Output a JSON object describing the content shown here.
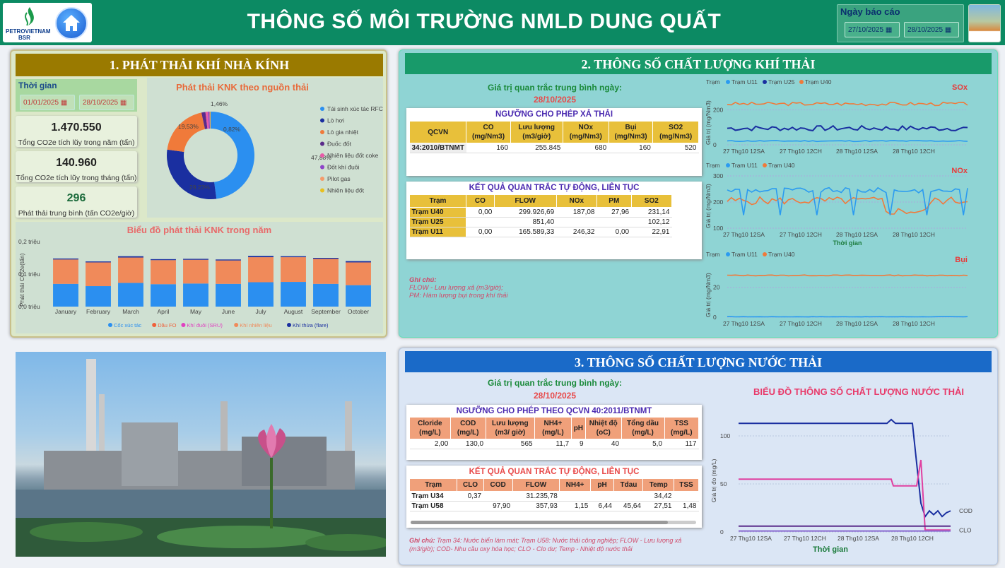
{
  "header": {
    "brand_line1": "PETROVIETNAM",
    "brand_line2": "BSR",
    "title": "THÔNG SỐ MÔI TRƯỜNG NMLD DUNG QUẤT",
    "report_date_label": "Ngày báo cáo",
    "date_from": "27/10/2025",
    "date_to": "28/10/2025"
  },
  "ghg": {
    "title": "1. PHÁT THẢI KHÍ NHÀ KÍNH",
    "time_label": "Thời gian",
    "date_from": "01/01/2025",
    "date_to": "28/10/2025",
    "kpi": [
      {
        "value": "1.470.550",
        "label": "Tổng CO2e tích lũy trong năm (tấn)"
      },
      {
        "value": "140.960",
        "label": "Tổng CO2e tích lũy trong tháng (tấn)"
      },
      {
        "value": "296",
        "label": "Phát thải trung bình (tấn CO2e/giờ)"
      }
    ],
    "donut": {
      "title": "Phát thải KNK theo nguồn thải",
      "slices": [
        {
          "name": "Tái sinh xúc tác RFCC",
          "value": 47.88,
          "label": "47,88%",
          "color": "#2b8ff0"
        },
        {
          "name": "Lò hơi",
          "value": 29.23,
          "label": "29,23%",
          "color": "#1a2fa0"
        },
        {
          "name": "Lò gia nhiệt",
          "value": 19.53,
          "label": "19,53%",
          "color": "#f07a3a"
        },
        {
          "name": "Đuốc đốt",
          "value": 1.46,
          "label": "1,46%",
          "color": "#5a2a8a"
        },
        {
          "name": "Nhiên liệu đốt coke",
          "value": 0.95,
          "label": "",
          "color": "#e85aa8"
        },
        {
          "name": "Đốt khí đuôi",
          "value": 0.55,
          "label": "",
          "color": "#8e44c8"
        },
        {
          "name": "Pilot gas",
          "value": 0.25,
          "label": "",
          "color": "#f59a6a"
        },
        {
          "name": "Nhiên liệu đốt",
          "value": 0.15,
          "label": "",
          "color": "#e8c020"
        }
      ],
      "center_label": "0,82%"
    },
    "bar": {
      "title": "Biểu đồ phát thải KNK trong năm",
      "ylabel": "Phát thải CO2e(tấn)",
      "yticks": [
        "0,0 triệu",
        "0,1 triệu",
        "0,2 triệu"
      ],
      "categories": [
        "January",
        "February",
        "March",
        "April",
        "May",
        "June",
        "July",
        "August",
        "September",
        "October"
      ],
      "series": [
        {
          "name": "Cốc xúc tác",
          "color": "#2b8ff0",
          "values": [
            0.07,
            0.063,
            0.073,
            0.069,
            0.071,
            0.07,
            0.075,
            0.076,
            0.07,
            0.066
          ]
        },
        {
          "name": "Dầu FO",
          "color": "#f0603a",
          "values": [
            0,
            0,
            0,
            0,
            0,
            0,
            0,
            0,
            0,
            0
          ]
        },
        {
          "name": "Khí đuôi (SRU)",
          "color": "#e040c0",
          "values": [
            0,
            0,
            0,
            0,
            0,
            0,
            0,
            0,
            0,
            0
          ]
        },
        {
          "name": "Khí nhiên liệu",
          "color": "#f08a5a",
          "values": [
            0.075,
            0.073,
            0.078,
            0.074,
            0.073,
            0.072,
            0.077,
            0.076,
            0.077,
            0.07
          ]
        },
        {
          "name": "Khí thừa (flare)",
          "color": "#1a2fa0",
          "values": [
            0.003,
            0.003,
            0.004,
            0.003,
            0.003,
            0.003,
            0.004,
            0.003,
            0.003,
            0.004
          ]
        }
      ],
      "ymax": 0.2
    }
  },
  "gas": {
    "title": "2. THÔNG SỐ CHẤT LƯỢNG KHÍ THẢI",
    "avg_label": "Giá trị quan trắc trung bình ngày:",
    "avg_date": "28/10/2025",
    "limit_title": "NGƯỠNG CHO PHÉP XẢ THẢI",
    "limit_headers": [
      "QCVN",
      "CO (mg/Nm3)",
      "Lưu lượng (m3/giờ)",
      "NOx (mg/Nm3)",
      "Bụi (mg/Nm3)",
      "SO2 (mg/Nm3)"
    ],
    "limit_row": [
      "34:2010/BTNMT",
      "160",
      "255.845",
      "680",
      "160",
      "520"
    ],
    "auto_title": "KẾT QUẢ QUAN TRẮC TỰ ĐỘNG, LIÊN TỤC",
    "auto_headers": [
      "Trạm",
      "CO",
      "FLOW",
      "NOx",
      "PM",
      "SO2"
    ],
    "auto_rows": [
      [
        "Trạm U40",
        "0,00",
        "299.926,69",
        "187,08",
        "27,96",
        "231,14"
      ],
      [
        "Trạm U25",
        "",
        "851,40",
        "",
        "",
        "102,12"
      ],
      [
        "Trạm U11",
        "0,00",
        "165.589,33",
        "246,32",
        "0,00",
        "22,91"
      ]
    ],
    "note_title": "Ghi chú:",
    "note_lines": [
      "FLOW - Lưu lượng xả (m3/giờ);",
      "PM: Hàm lượng bụi trong khí thải"
    ],
    "charts_legend_title": "Trạm",
    "x_ticks": [
      "27 Thg10 12SA",
      "27 Thg10 12CH",
      "28 Thg10 12SA",
      "28 Thg10 12CH"
    ],
    "ylabel": "Giá trị (mg/Nm3)",
    "xlabel": "Thời gian",
    "sox": {
      "title": "SOx",
      "legend": [
        "Trạm U11",
        "Trạm U25",
        "Trạm U40"
      ],
      "yticks": [
        "0",
        "200"
      ]
    },
    "nox": {
      "title": "NOx",
      "legend": [
        "Trạm U11",
        "Trạm U40"
      ],
      "yticks": [
        "100",
        "200",
        "300"
      ]
    },
    "dust": {
      "title": "Bụi",
      "legend": [
        "Trạm U11",
        "Trạm U40"
      ],
      "yticks": [
        "0",
        "20"
      ]
    },
    "colors": {
      "u11": "#2b9bf0",
      "u25": "#1a2fa0",
      "u40": "#f07a3a"
    }
  },
  "water": {
    "title": "3. THÔNG SỐ CHẤT LƯỢNG NƯỚC THẢI",
    "avg_label": "Giá trị quan trắc trung bình ngày:",
    "avg_date": "28/10/2025",
    "limit_title": "NGƯỠNG CHO PHÉP THEO QCVN 40:2011/BTNMT",
    "limit_headers": [
      "Cloride (mg/L)",
      "COD (mg/L)",
      "Lưu lượng (m3/ giờ)",
      "NH4+ (mg/L)",
      "pH",
      "Nhiệt độ (oC)",
      "Tổng dầu (mg/L)",
      "TSS (mg/L)"
    ],
    "limit_row": [
      "2,00",
      "130,0",
      "565",
      "11,7",
      "9",
      "40",
      "5,0",
      "117"
    ],
    "auto_title": "KẾT QUẢ QUAN TRẮC TỰ ĐỘNG, LIÊN TỤC",
    "auto_headers": [
      "Trạm",
      "CLO",
      "COD",
      "FLOW",
      "NH4+",
      "pH",
      "Tdau",
      "Temp",
      "TSS"
    ],
    "auto_rows": [
      [
        "Trạm U34",
        "0,37",
        "",
        "31.235,78",
        "",
        "",
        "",
        "34,42",
        ""
      ],
      [
        "Trạm U58",
        "",
        "97,90",
        "357,93",
        "1,15",
        "6,44",
        "45,64",
        "27,51",
        "1,48"
      ]
    ],
    "note_title": "Ghi chú:",
    "note_text": "Trạm 34: Nước biển làm mát; Trạm U58: Nước thải công nghiệp; FLOW - Lưu lượng xả (m3/giờ);  COD- Nhu cầu oxy hóa học; CLO - Clo dư; Temp - Nhiệt độ nước thải",
    "chart": {
      "title": "BIỂU ĐỒ THÔNG SỐ CHẤT LƯỢNG NƯỚC THẢI",
      "ylabel": "Giá trị đo (mg/L)",
      "xlabel": "Thời gian",
      "yticks": [
        "0",
        "50",
        "100"
      ],
      "x_ticks": [
        "27 Thg10 12SA",
        "27 Thg10 12CH",
        "28 Thg10 12SA",
        "28 Thg10 12CH"
      ],
      "labels": [
        "COD",
        "CLO"
      ]
    }
  }
}
